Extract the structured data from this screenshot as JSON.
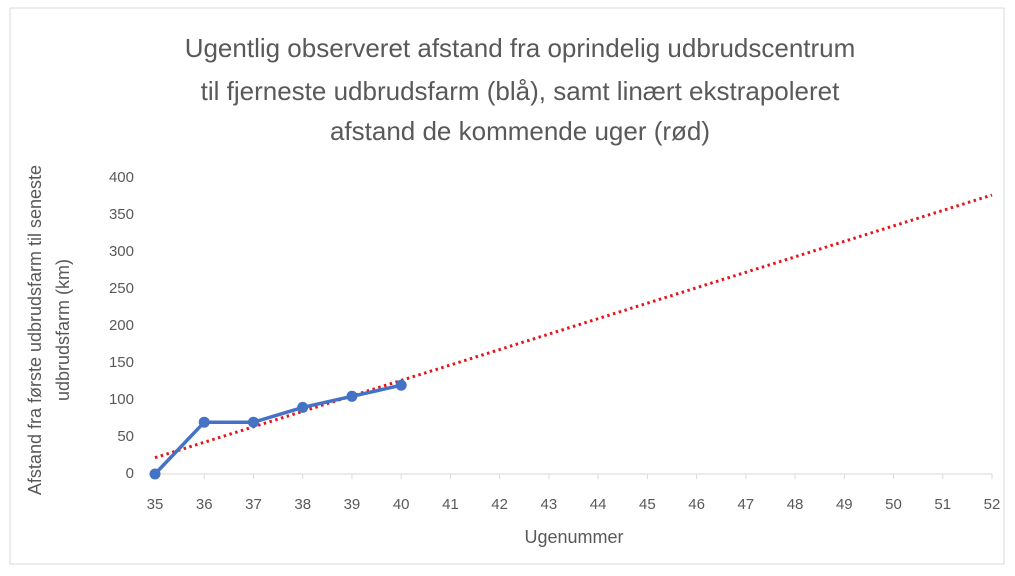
{
  "chart_data": {
    "type": "line",
    "title": [
      "Ugentlig observeret afstand fra oprindelig udbrudscentrum",
      "til fjerneste udbrudsfarm (blå), samt linært ekstrapoleret",
      "afstand de kommende uger (rød)"
    ],
    "xlabel": "Ugenummer",
    "ylabel": [
      "Afstand fra første udbrudsfarm til seneste",
      "udbrudsfarm (km)"
    ],
    "xlim": [
      35,
      52
    ],
    "xticks": [
      35,
      36,
      37,
      38,
      39,
      40,
      41,
      42,
      43,
      44,
      45,
      46,
      47,
      48,
      49,
      50,
      51,
      52
    ],
    "ylim": [
      0,
      400
    ],
    "yticks": [
      0,
      50,
      100,
      150,
      200,
      250,
      300,
      350,
      400
    ],
    "grid": false,
    "series": [
      {
        "color": "#4472c4",
        "style": "solid",
        "markers": true,
        "x": [
          35,
          36,
          37,
          38,
          39,
          40
        ],
        "values": [
          0,
          70,
          70,
          90,
          105,
          120
        ]
      },
      {
        "color": "#e8141b",
        "style": "dotted",
        "markers": false,
        "x": [
          35,
          52
        ],
        "values": [
          22,
          377
        ]
      }
    ]
  }
}
